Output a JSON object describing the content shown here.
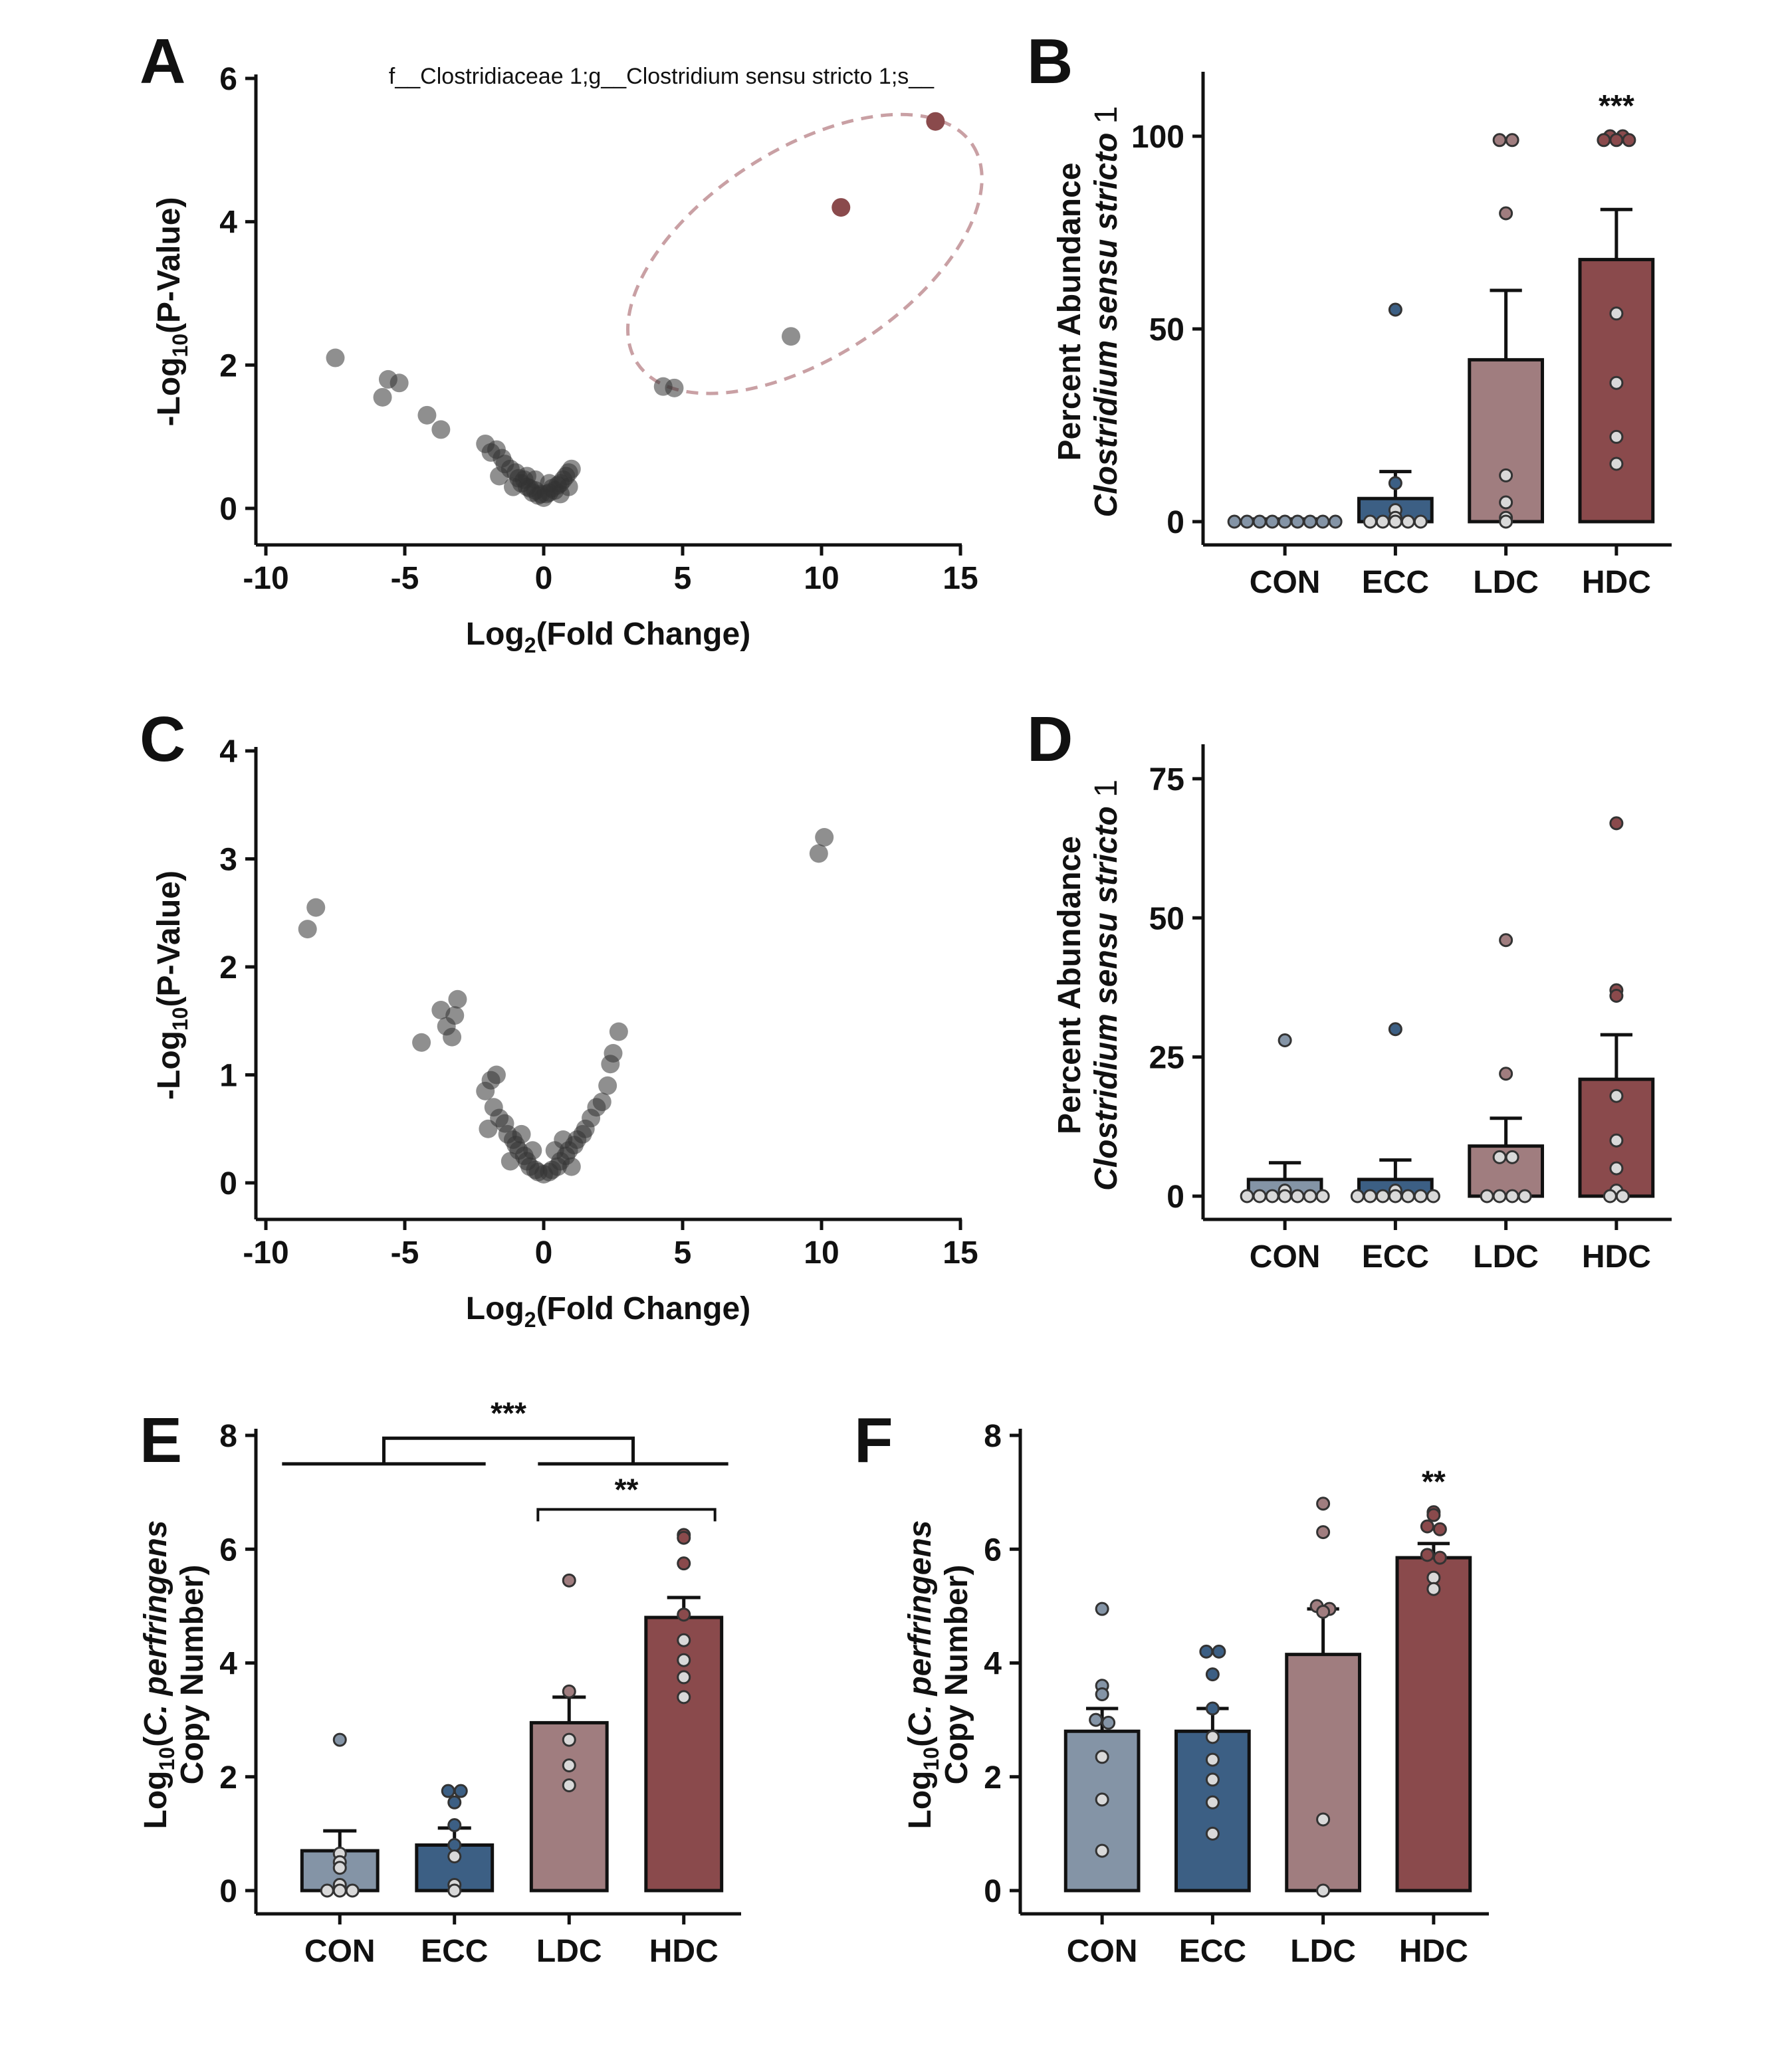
{
  "colors": {
    "CON": "#8494a6",
    "ECC": "#3c5f84",
    "LDC": "#a07d7f",
    "HDC": "#8a4a4c",
    "volcano_point": "#333333",
    "highlight": "#8a4a4c",
    "ellipse": "#c9a0a4"
  },
  "chart_data": [
    {
      "panel": "A",
      "type": "scatter",
      "title": "f__Clostridiaceae 1;g__Clostridium sensu stricto 1;s__",
      "xlabel_prefix": "Log",
      "xlabel_sub": "2",
      "xlabel_suffix": "(Fold Change)",
      "ylabel_prefix": "-Log",
      "ylabel_sub": "10",
      "ylabel_suffix": "(P-Value)",
      "xlim": [
        -10,
        15
      ],
      "ylim": [
        0,
        6
      ],
      "xticks": [
        -10,
        -5,
        0,
        5,
        10,
        15
      ],
      "yticks": [
        0,
        2,
        4,
        6
      ],
      "points": [
        [
          -7.5,
          2.1
        ],
        [
          -5.8,
          1.55
        ],
        [
          -5.6,
          1.8
        ],
        [
          -5.2,
          1.75
        ],
        [
          -4.2,
          1.3
        ],
        [
          -3.7,
          1.1
        ],
        [
          -2.1,
          0.9
        ],
        [
          -1.9,
          0.78
        ],
        [
          -1.7,
          0.82
        ],
        [
          -1.5,
          0.7
        ],
        [
          -1.4,
          0.62
        ],
        [
          -1.2,
          0.55
        ],
        [
          -1.0,
          0.5
        ],
        [
          -0.9,
          0.42
        ],
        [
          -0.8,
          0.35
        ],
        [
          -0.7,
          0.4
        ],
        [
          -0.6,
          0.3
        ],
        [
          -0.5,
          0.28
        ],
        [
          -0.4,
          0.22
        ],
        [
          -0.3,
          0.25
        ],
        [
          -0.2,
          0.18
        ],
        [
          -0.1,
          0.2
        ],
        [
          0.0,
          0.15
        ],
        [
          0.1,
          0.2
        ],
        [
          0.2,
          0.22
        ],
        [
          0.3,
          0.28
        ],
        [
          0.4,
          0.25
        ],
        [
          0.5,
          0.32
        ],
        [
          0.6,
          0.35
        ],
        [
          0.7,
          0.4
        ],
        [
          0.8,
          0.45
        ],
        [
          0.9,
          0.5
        ],
        [
          1.0,
          0.55
        ],
        [
          -0.6,
          0.45
        ],
        [
          0.2,
          0.35
        ],
        [
          -1.1,
          0.3
        ],
        [
          0.6,
          0.2
        ],
        [
          -0.3,
          0.4
        ],
        [
          0.9,
          0.3
        ],
        [
          -1.6,
          0.45
        ],
        [
          4.3,
          1.7
        ],
        [
          4.7,
          1.68
        ],
        [
          8.9,
          2.4
        ]
      ],
      "highlight_points": [
        [
          10.7,
          4.2
        ],
        [
          14.1,
          5.4
        ]
      ],
      "ellipse": {
        "cx": 9.4,
        "cy": 3.55,
        "rx": 7.2,
        "ry": 1.45,
        "angle_deg": -33
      }
    },
    {
      "panel": "B",
      "type": "bar",
      "categories": [
        "CON",
        "ECC",
        "LDC",
        "HDC"
      ],
      "ylabel_line1": "Percent Abundance",
      "ylabel_line2": "Clostridium sensu stricto",
      "ylabel_line2_suffix": "1",
      "ylim": [
        0,
        115
      ],
      "yticks": [
        0,
        50,
        100
      ],
      "means": [
        0,
        6,
        42,
        68
      ],
      "sem": [
        0,
        7,
        18,
        13
      ],
      "points": [
        [
          0,
          0,
          0,
          0,
          0,
          0,
          0,
          0,
          0
        ],
        [
          55,
          10,
          3,
          1,
          0,
          0,
          0,
          0,
          0
        ],
        [
          99,
          99,
          80,
          12,
          5,
          1,
          0
        ],
        [
          100,
          99,
          100,
          99,
          99,
          54,
          36,
          22,
          15
        ]
      ],
      "significance": [
        null,
        null,
        null,
        "***"
      ]
    },
    {
      "panel": "C",
      "type": "scatter",
      "xlabel_prefix": "Log",
      "xlabel_sub": "2",
      "xlabel_suffix": "(Fold Change)",
      "ylabel_prefix": "-Log",
      "ylabel_sub": "10",
      "ylabel_suffix": "(P-Value)",
      "xlim": [
        -10,
        15
      ],
      "ylim": [
        0,
        4
      ],
      "xticks": [
        -10,
        -5,
        0,
        5,
        10,
        15
      ],
      "yticks": [
        0,
        1,
        2,
        3,
        4
      ],
      "points": [
        [
          -8.5,
          2.35
        ],
        [
          -8.2,
          2.55
        ],
        [
          -4.4,
          1.3
        ],
        [
          -3.7,
          1.6
        ],
        [
          -3.5,
          1.45
        ],
        [
          -3.3,
          1.35
        ],
        [
          -3.2,
          1.55
        ],
        [
          -3.1,
          1.7
        ],
        [
          -2.1,
          0.85
        ],
        [
          -1.9,
          0.95
        ],
        [
          -1.7,
          1.0
        ],
        [
          -1.8,
          0.7
        ],
        [
          -1.6,
          0.6
        ],
        [
          -1.4,
          0.55
        ],
        [
          -1.3,
          0.45
        ],
        [
          -1.1,
          0.4
        ],
        [
          -1.0,
          0.35
        ],
        [
          -0.9,
          0.3
        ],
        [
          -0.7,
          0.25
        ],
        [
          -0.6,
          0.2
        ],
        [
          -0.5,
          0.15
        ],
        [
          -0.3,
          0.12
        ],
        [
          -0.2,
          0.1
        ],
        [
          0.0,
          0.08
        ],
        [
          0.2,
          0.1
        ],
        [
          0.3,
          0.12
        ],
        [
          0.5,
          0.15
        ],
        [
          0.6,
          0.2
        ],
        [
          0.8,
          0.25
        ],
        [
          0.9,
          0.3
        ],
        [
          1.1,
          0.35
        ],
        [
          1.2,
          0.4
        ],
        [
          1.4,
          0.45
        ],
        [
          1.5,
          0.5
        ],
        [
          1.7,
          0.6
        ],
        [
          1.9,
          0.7
        ],
        [
          2.1,
          0.75
        ],
        [
          2.3,
          0.9
        ],
        [
          2.4,
          1.1
        ],
        [
          2.5,
          1.2
        ],
        [
          2.7,
          1.4
        ],
        [
          -0.4,
          0.3
        ],
        [
          0.4,
          0.3
        ],
        [
          -1.2,
          0.2
        ],
        [
          1.0,
          0.15
        ],
        [
          -0.8,
          0.45
        ],
        [
          0.7,
          0.4
        ],
        [
          -2.0,
          0.5
        ],
        [
          9.9,
          3.05
        ],
        [
          10.1,
          3.2
        ]
      ]
    },
    {
      "panel": "D",
      "type": "bar",
      "categories": [
        "CON",
        "ECC",
        "LDC",
        "HDC"
      ],
      "ylabel_line1": "Percent Abundance",
      "ylabel_line2": "Clostridium sensu stricto",
      "ylabel_line2_suffix": "1",
      "ylim": [
        0,
        80
      ],
      "yticks": [
        0,
        25,
        50,
        75
      ],
      "means": [
        3,
        3,
        9,
        21
      ],
      "sem": [
        3,
        3.5,
        5,
        8
      ],
      "points": [
        [
          28,
          1,
          0,
          0,
          0,
          0,
          0,
          0,
          0
        ],
        [
          30,
          1,
          0,
          0,
          0,
          0,
          0,
          0,
          0
        ],
        [
          46,
          22,
          7,
          7,
          0,
          0,
          0,
          0
        ],
        [
          67,
          37,
          36,
          18,
          10,
          5,
          1,
          0,
          0
        ]
      ],
      "significance": [
        null,
        null,
        null,
        null
      ]
    },
    {
      "panel": "E",
      "type": "bar",
      "categories": [
        "CON",
        "ECC",
        "LDC",
        "HDC"
      ],
      "ylabel_line1_prefix": "Log",
      "ylabel_line1_sub": "10",
      "ylabel_line1_open": "(",
      "ylabel_line1_italic": "C. perfringens",
      "ylabel_line2": "Copy Number)",
      "ylim": [
        0,
        8
      ],
      "yticks": [
        0,
        2,
        4,
        6,
        8
      ],
      "means": [
        0.7,
        0.8,
        2.95,
        4.8
      ],
      "sem": [
        0.35,
        0.3,
        0.45,
        0.35
      ],
      "points": [
        [
          2.65,
          0.65,
          0.5,
          0.4,
          0.1,
          0,
          0,
          0
        ],
        [
          1.75,
          1.75,
          1.55,
          1.15,
          0.8,
          0.6,
          0.1,
          0
        ],
        [
          5.45,
          3.5,
          2.65,
          2.2,
          1.85
        ],
        [
          6.25,
          6.2,
          5.75,
          4.85,
          4.4,
          4.05,
          3.75,
          3.4
        ]
      ],
      "brackets": [
        {
          "label": "***",
          "left_group": [
            0,
            1
          ],
          "right_group": [
            2,
            3
          ]
        },
        {
          "label": "**",
          "from": 2,
          "to": 3
        }
      ]
    },
    {
      "panel": "F",
      "type": "bar",
      "categories": [
        "CON",
        "ECC",
        "LDC",
        "HDC"
      ],
      "ylabel_line1_prefix": "Log",
      "ylabel_line1_sub": "10",
      "ylabel_line1_open": "(",
      "ylabel_line1_italic": "C. perfringens",
      "ylabel_line2": "Copy Number)",
      "ylim": [
        0,
        8
      ],
      "yticks": [
        0,
        2,
        4,
        6,
        8
      ],
      "means": [
        2.8,
        2.8,
        4.15,
        5.85
      ],
      "sem": [
        0.4,
        0.4,
        0.8,
        0.25
      ],
      "points": [
        [
          4.95,
          3.6,
          3.45,
          3.0,
          2.95,
          2.35,
          1.6,
          0.7
        ],
        [
          4.2,
          4.2,
          3.8,
          3.2,
          2.7,
          2.3,
          1.95,
          1.55,
          1.0
        ],
        [
          6.8,
          6.3,
          5.0,
          4.95,
          4.9,
          1.25,
          0
        ],
        [
          6.65,
          6.6,
          6.4,
          6.35,
          5.9,
          5.85,
          5.5,
          5.3
        ]
      ],
      "significance": [
        null,
        null,
        null,
        "**"
      ]
    }
  ]
}
